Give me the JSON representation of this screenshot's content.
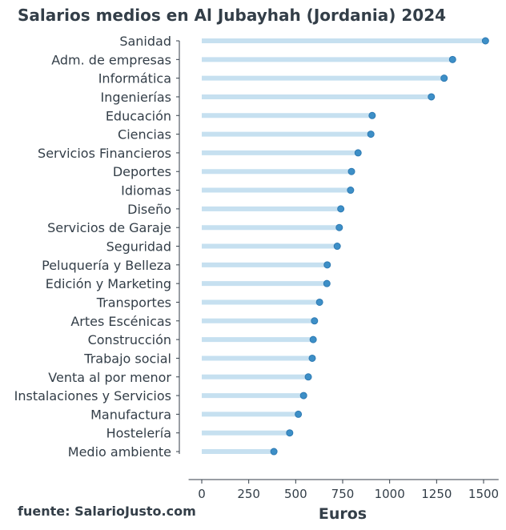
{
  "chart_data": {
    "type": "lollipop-bar",
    "title": "Salarios medios en Al Jubayhah (Jordania) 2024",
    "xlabel": "Euros",
    "ylabel": "",
    "xlim": [
      -70,
      1580
    ],
    "xticks": [
      0,
      250,
      500,
      750,
      1000,
      1250,
      1500
    ],
    "grid": false,
    "categories": [
      "Sanidad",
      "Adm. de empresas",
      "Informática",
      "Ingenierías",
      "Educación",
      "Ciencias",
      "Servicios Financieros",
      "Deportes",
      "Idiomas",
      "Diseño",
      "Servicios de Garaje",
      "Seguridad",
      "Peluquería y Belleza",
      "Edición y Marketing",
      "Transportes",
      "Artes Escénicas",
      "Construcción",
      "Trabajo social",
      "Venta al por menor",
      "Instalaciones y Servicios",
      "Manufactura",
      "Hostelería",
      "Medio ambiente"
    ],
    "values": [
      1510,
      1335,
      1290,
      1222,
      907,
      900,
      832,
      797,
      792,
      740,
      732,
      721,
      668,
      666,
      627,
      600,
      593,
      588,
      567,
      542,
      514,
      468,
      384
    ],
    "colors": {
      "bar": "#c6e0f0",
      "dot": "#3d8fc7",
      "text": "#333e48"
    }
  },
  "source": "fuente: SalarioJusto.com"
}
